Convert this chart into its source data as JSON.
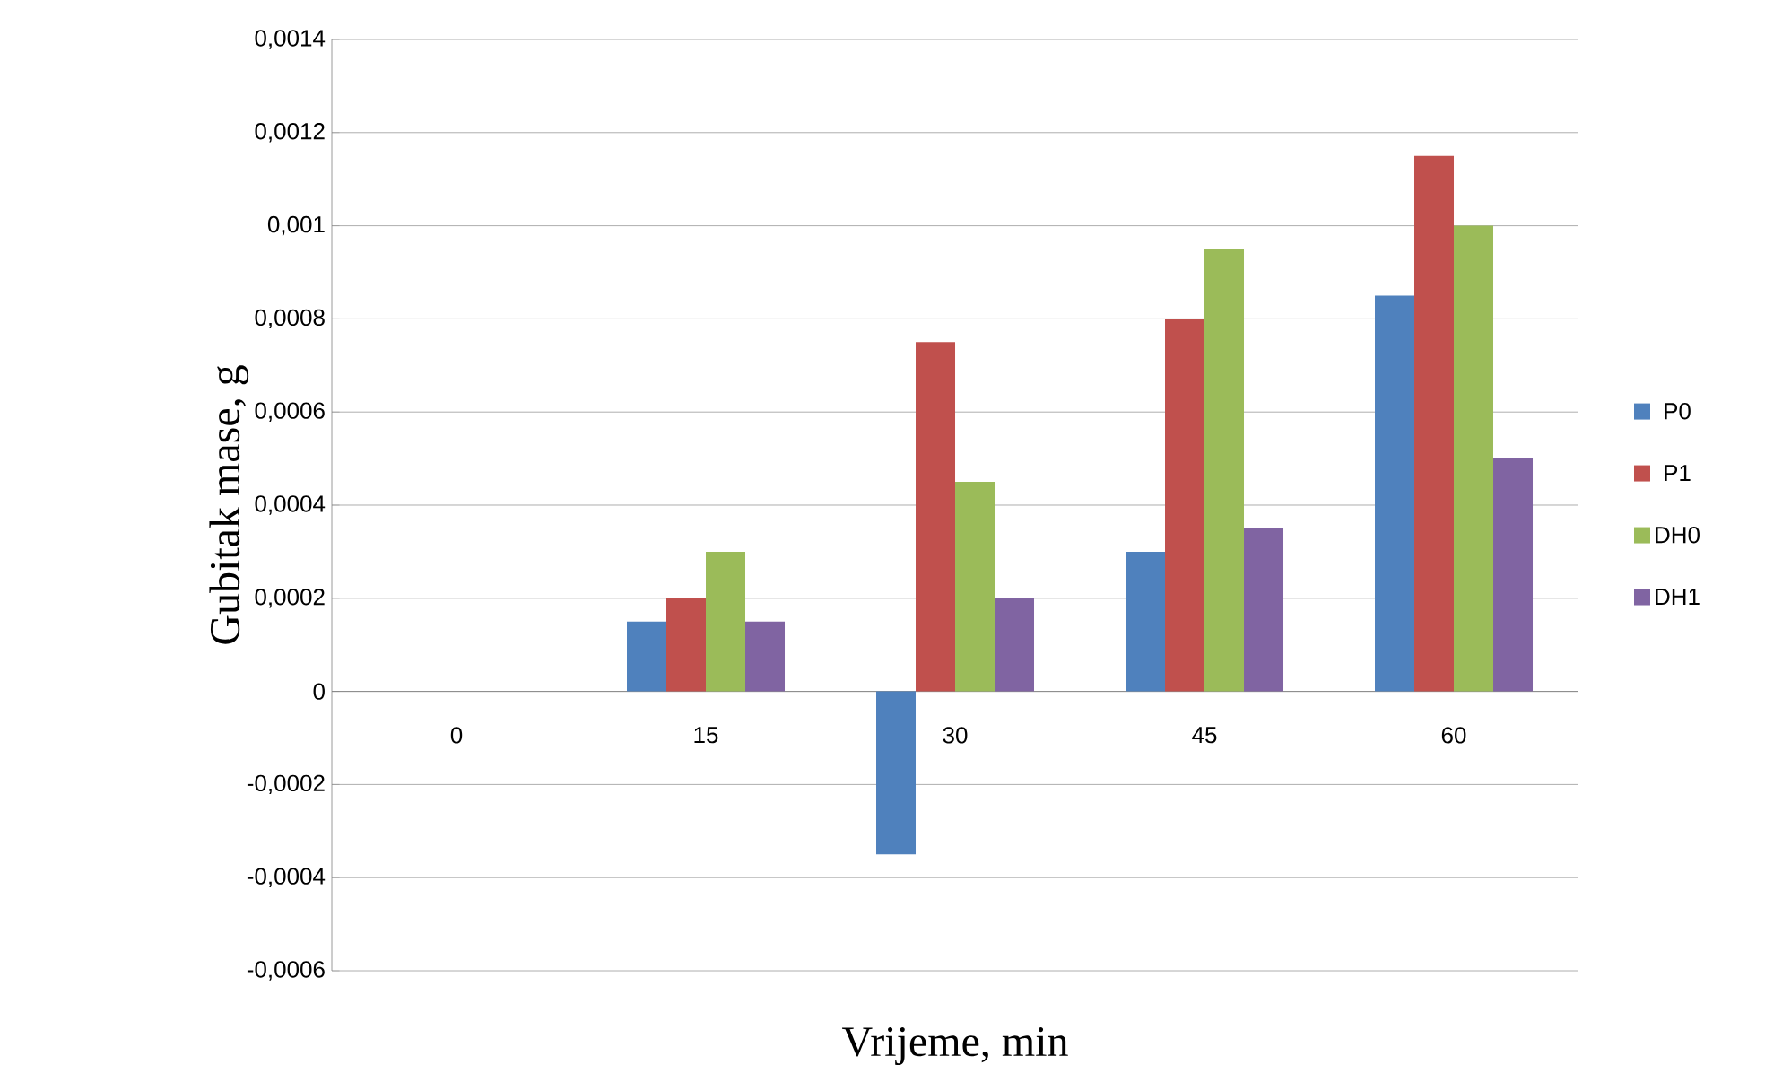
{
  "chart_data": {
    "type": "bar",
    "xlabel": "Vrijeme, min",
    "ylabel": "Gubitak mase, g",
    "categories": [
      "0",
      "15",
      "30",
      "45",
      "60"
    ],
    "series": [
      {
        "name": "P0",
        "color": "#4f81bd",
        "values": [
          0,
          0.00015,
          -0.00035,
          0.0003,
          0.00085
        ]
      },
      {
        "name": "P1",
        "color": "#c0504d",
        "values": [
          0,
          0.0002,
          0.00075,
          0.0008,
          0.00115
        ]
      },
      {
        "name": "DH0",
        "color": "#9bbb59",
        "values": [
          0,
          0.0003,
          0.00045,
          0.00095,
          0.001
        ]
      },
      {
        "name": "DH1",
        "color": "#8064a2",
        "values": [
          0,
          0.00015,
          0.0002,
          0.00035,
          0.0005
        ]
      }
    ],
    "ylim": [
      -0.0006,
      0.0014
    ],
    "yticks": [
      {
        "value": -0.0006,
        "label": "-0,0006"
      },
      {
        "value": -0.0004,
        "label": "-0,0004"
      },
      {
        "value": -0.0002,
        "label": "-0,0002"
      },
      0,
      {
        "value": 0.0002,
        "label": "0,0002"
      },
      {
        "value": 0.0004,
        "label": "0,0004"
      },
      {
        "value": 0.0006,
        "label": "0,0006"
      },
      {
        "value": 0.0008,
        "label": "0,0008"
      },
      {
        "value": 0.001,
        "label": "0,001"
      },
      {
        "value": 0.0012,
        "label": "0,0012"
      },
      {
        "value": 0.0014,
        "label": "0,0014"
      }
    ],
    "grid": "y",
    "legend": "right"
  }
}
